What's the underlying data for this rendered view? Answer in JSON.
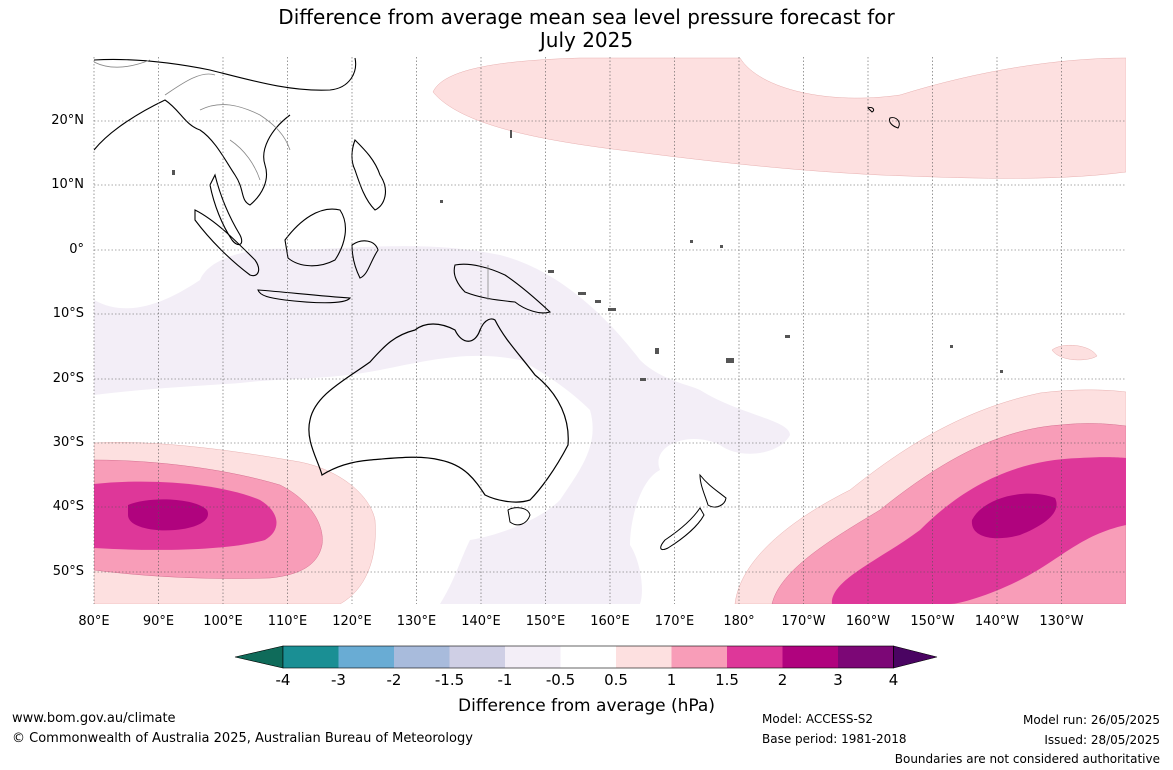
{
  "title_line1": "Difference from average mean sea level pressure forecast for",
  "title_line2": "July 2025",
  "lat_labels": [
    "20°N",
    "10°N",
    "0°",
    "10°S",
    "20°S",
    "30°S",
    "40°S",
    "50°S"
  ],
  "lon_labels": [
    "80°E",
    "90°E",
    "100°E",
    "110°E",
    "120°E",
    "130°E",
    "140°E",
    "150°E",
    "160°E",
    "170°E",
    "180°",
    "170°W",
    "160°W",
    "150°W",
    "140°W",
    "130°W"
  ],
  "colorbar": {
    "ticks": [
      "-4",
      "-3",
      "-2",
      "-1.5",
      "-1",
      "-0.5",
      "0.5",
      "1",
      "1.5",
      "2",
      "3",
      "4"
    ],
    "colors": [
      "#1a8f94",
      "#69acd4",
      "#a8bbdc",
      "#cfcfe5",
      "#f3eef7",
      "#ffffff",
      "#fde0e0",
      "#f89db8",
      "#de3799",
      "#b0037e",
      "#7c0776"
    ],
    "under_color": "#0f6b5a",
    "over_color": "#4a0462",
    "label": "Difference from average (hPa)"
  },
  "footer": {
    "website": "www.bom.gov.au/climate",
    "copyright": "© Commonwealth of Australia 2025, Australian Bureau of Meteorology",
    "model": "Model: ACCESS-S2",
    "base_period": "Base period: 1981-2018",
    "model_run": "Model run: 26/05/2025",
    "issued": "Issued: 28/05/2025",
    "disclaimer": "Boundaries are not considered authoritative"
  }
}
